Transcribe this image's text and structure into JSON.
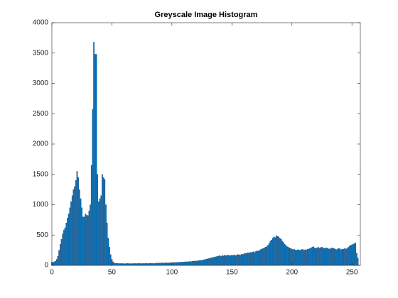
{
  "chart_data": {
    "type": "bar",
    "title": "Greyscale Image Histogram",
    "x": [
      0,
      1,
      2,
      3,
      4,
      5,
      6,
      7,
      8,
      9,
      10,
      11,
      12,
      13,
      14,
      15,
      16,
      17,
      18,
      19,
      20,
      21,
      22,
      23,
      24,
      25,
      26,
      27,
      28,
      29,
      30,
      31,
      32,
      33,
      34,
      35,
      36,
      37,
      38,
      39,
      40,
      41,
      42,
      43,
      44,
      45,
      46,
      47,
      48,
      49,
      50,
      51,
      52,
      53,
      54,
      55,
      56,
      57,
      58,
      59,
      60,
      61,
      62,
      63,
      64,
      65,
      66,
      67,
      68,
      69,
      70,
      71,
      72,
      73,
      74,
      75,
      76,
      77,
      78,
      79,
      80,
      81,
      82,
      83,
      84,
      85,
      86,
      87,
      88,
      89,
      90,
      91,
      92,
      93,
      94,
      95,
      96,
      97,
      98,
      99,
      100,
      101,
      102,
      103,
      104,
      105,
      106,
      107,
      108,
      109,
      110,
      111,
      112,
      113,
      114,
      115,
      116,
      117,
      118,
      119,
      120,
      121,
      122,
      123,
      124,
      125,
      126,
      127,
      128,
      129,
      130,
      131,
      132,
      133,
      134,
      135,
      136,
      137,
      138,
      139,
      140,
      141,
      142,
      143,
      144,
      145,
      146,
      147,
      148,
      149,
      150,
      151,
      152,
      153,
      154,
      155,
      156,
      157,
      158,
      159,
      160,
      161,
      162,
      163,
      164,
      165,
      166,
      167,
      168,
      169,
      170,
      171,
      172,
      173,
      174,
      175,
      176,
      177,
      178,
      179,
      180,
      181,
      182,
      183,
      184,
      185,
      186,
      187,
      188,
      189,
      190,
      191,
      192,
      193,
      194,
      195,
      196,
      197,
      198,
      199,
      200,
      201,
      202,
      203,
      204,
      205,
      206,
      207,
      208,
      209,
      210,
      211,
      212,
      213,
      214,
      215,
      216,
      217,
      218,
      219,
      220,
      221,
      222,
      223,
      224,
      225,
      226,
      227,
      228,
      229,
      230,
      231,
      232,
      233,
      234,
      235,
      236,
      237,
      238,
      239,
      240,
      241,
      242,
      243,
      244,
      245,
      246,
      247,
      248,
      249,
      250,
      251,
      252,
      253,
      254,
      255
    ],
    "values": [
      50,
      50,
      60,
      70,
      100,
      150,
      250,
      350,
      430,
      520,
      580,
      620,
      700,
      780,
      850,
      950,
      1050,
      1150,
      1250,
      1300,
      1400,
      1550,
      1450,
      1250,
      1100,
      950,
      800,
      800,
      850,
      830,
      820,
      900,
      1000,
      1650,
      2570,
      3680,
      3480,
      3480,
      1500,
      1050,
      1100,
      1150,
      1500,
      1450,
      1420,
      1000,
      700,
      450,
      300,
      180,
      100,
      60,
      40,
      35,
      35,
      32,
      30,
      30,
      32,
      30,
      30,
      28,
      30,
      32,
      30,
      30,
      28,
      30,
      30,
      32,
      30,
      30,
      32,
      34,
      30,
      30,
      32,
      30,
      35,
      32,
      30,
      32,
      35,
      34,
      32,
      30,
      35,
      38,
      36,
      40,
      38,
      40,
      42,
      38,
      40,
      45,
      42,
      40,
      44,
      42,
      45,
      48,
      46,
      50,
      48,
      52,
      50,
      55,
      52,
      56,
      55,
      58,
      60,
      58,
      62,
      65,
      60,
      68,
      70,
      72,
      70,
      75,
      78,
      80,
      85,
      82,
      90,
      95,
      100,
      105,
      110,
      115,
      120,
      125,
      130,
      135,
      140,
      145,
      150,
      155,
      160,
      150,
      165,
      155,
      170,
      160,
      165,
      170,
      160,
      165,
      170,
      165,
      175,
      160,
      170,
      180,
      175,
      170,
      185,
      180,
      190,
      200,
      195,
      210,
      205,
      215,
      210,
      220,
      225,
      215,
      230,
      240,
      235,
      250,
      260,
      270,
      280,
      290,
      300,
      310,
      330,
      360,
      400,
      420,
      450,
      470,
      460,
      490,
      480,
      470,
      450,
      430,
      400,
      380,
      350,
      330,
      310,
      300,
      290,
      280,
      270,
      260,
      265,
      255,
      250,
      260,
      255,
      250,
      260,
      265,
      250,
      260,
      255,
      265,
      270,
      280,
      290,
      300,
      310,
      290,
      280,
      290,
      300,
      285,
      295,
      300,
      290,
      280,
      285,
      290,
      280,
      270,
      275,
      285,
      290,
      280,
      270,
      260,
      270,
      280,
      275,
      260,
      270,
      265,
      280,
      270,
      280,
      300,
      320,
      330,
      340,
      350,
      360,
      370,
      200,
      120
    ],
    "color": "#0072bd",
    "xlim": [
      0,
      257
    ],
    "xticks": [
      0,
      50,
      100,
      150,
      200,
      250
    ],
    "ylim": [
      0,
      4000
    ],
    "yticks": [
      0,
      500,
      1000,
      1500,
      2000,
      2500,
      3000,
      3500,
      4000
    ],
    "grid": false
  }
}
